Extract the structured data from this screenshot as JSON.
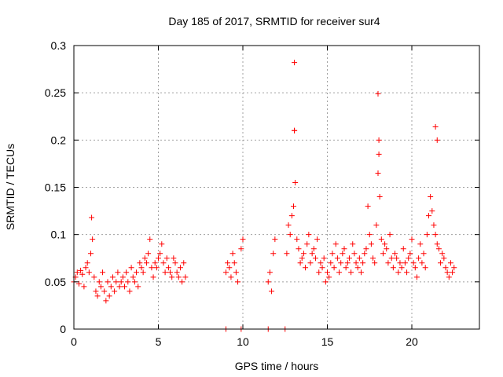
{
  "chart_data": {
    "type": "scatter",
    "title": "Day 185 of 2017, SRMTID for receiver sur4",
    "xlabel": "GPS time / hours",
    "ylabel": "SRMTID / TECUs",
    "xlim": [
      0,
      24
    ],
    "ylim": [
      0,
      0.3
    ],
    "xticks": [
      0,
      5,
      10,
      15,
      20
    ],
    "xtick_labels": [
      "0",
      "5",
      "10",
      "15",
      "20"
    ],
    "yticks": [
      0,
      0.05,
      0.1,
      0.15,
      0.2,
      0.25,
      0.3
    ],
    "ytick_labels": [
      "0",
      "0.05",
      "0.1",
      "0.15",
      "0.2",
      "0.25",
      "0.3"
    ],
    "grid": true,
    "marker": "plus",
    "color": "#ff0000",
    "series": [
      {
        "name": "SRMTID",
        "x": [
          0.0,
          0.1,
          0.2,
          0.3,
          0.4,
          0.5,
          0.6,
          0.7,
          0.8,
          0.9,
          1.0,
          1.05,
          1.1,
          1.2,
          1.3,
          1.4,
          1.5,
          1.6,
          1.7,
          1.8,
          1.9,
          2.0,
          2.1,
          2.2,
          2.3,
          2.4,
          2.5,
          2.6,
          2.7,
          2.8,
          2.9,
          3.0,
          3.1,
          3.2,
          3.3,
          3.4,
          3.5,
          3.6,
          3.7,
          3.8,
          3.9,
          4.0,
          4.1,
          4.2,
          4.3,
          4.4,
          4.5,
          4.6,
          4.7,
          4.8,
          4.9,
          5.0,
          5.1,
          5.2,
          5.3,
          5.4,
          5.5,
          5.6,
          5.7,
          5.8,
          5.9,
          6.0,
          6.1,
          6.2,
          6.3,
          6.4,
          6.5,
          6.6,
          9.0,
          9.1,
          9.2,
          9.3,
          9.4,
          9.5,
          9.6,
          9.7,
          9.9,
          10.0,
          9.0,
          9.9,
          11.5,
          12.5,
          11.5,
          11.6,
          11.7,
          11.8,
          11.9,
          12.6,
          12.7,
          12.8,
          12.9,
          13.0,
          13.05,
          13.1,
          13.2,
          13.3,
          13.4,
          13.5,
          13.6,
          13.7,
          13.8,
          13.9,
          14.0,
          14.1,
          14.2,
          14.3,
          14.4,
          14.5,
          14.6,
          14.7,
          14.8,
          14.9,
          15.0,
          15.1,
          15.2,
          15.3,
          15.4,
          15.5,
          15.6,
          15.7,
          15.8,
          15.9,
          16.0,
          16.1,
          16.2,
          16.3,
          16.4,
          16.5,
          16.6,
          16.7,
          16.8,
          16.9,
          17.0,
          17.1,
          17.2,
          17.3,
          17.4,
          17.5,
          17.6,
          17.7,
          17.8,
          17.9,
          18.0,
          18.05,
          18.1,
          18.2,
          18.3,
          18.4,
          18.5,
          18.6,
          18.7,
          18.8,
          18.9,
          19.0,
          19.1,
          19.2,
          19.3,
          19.4,
          19.5,
          19.6,
          19.7,
          19.8,
          19.9,
          20.0,
          20.1,
          20.2,
          20.3,
          20.4,
          20.5,
          20.6,
          20.7,
          20.8,
          20.9,
          21.0,
          21.1,
          21.2,
          21.3,
          21.4,
          21.5,
          21.6,
          21.7,
          21.8,
          21.9,
          22.0,
          22.1,
          22.2,
          22.3,
          22.4,
          22.5,
          13.05,
          13.05,
          18.0,
          18.05,
          21.4,
          21.5
        ],
        "y": [
          0.05,
          0.055,
          0.06,
          0.048,
          0.062,
          0.058,
          0.045,
          0.065,
          0.07,
          0.06,
          0.08,
          0.118,
          0.095,
          0.055,
          0.04,
          0.035,
          0.05,
          0.045,
          0.06,
          0.04,
          0.03,
          0.05,
          0.035,
          0.045,
          0.055,
          0.04,
          0.05,
          0.06,
          0.045,
          0.05,
          0.055,
          0.045,
          0.06,
          0.05,
          0.04,
          0.065,
          0.055,
          0.05,
          0.06,
          0.045,
          0.07,
          0.065,
          0.06,
          0.075,
          0.07,
          0.08,
          0.095,
          0.065,
          0.055,
          0.07,
          0.065,
          0.075,
          0.08,
          0.09,
          0.07,
          0.06,
          0.075,
          0.065,
          0.06,
          0.055,
          0.075,
          0.07,
          0.06,
          0.055,
          0.065,
          0.05,
          0.07,
          0.055,
          0.06,
          0.07,
          0.065,
          0.055,
          0.08,
          0.07,
          0.06,
          0.05,
          0.085,
          0.095,
          0.0,
          0.0,
          0.0,
          0.0,
          0.05,
          0.06,
          0.04,
          0.08,
          0.095,
          0.08,
          0.11,
          0.1,
          0.12,
          0.13,
          0.21,
          0.155,
          0.095,
          0.085,
          0.07,
          0.075,
          0.08,
          0.065,
          0.09,
          0.1,
          0.07,
          0.08,
          0.085,
          0.075,
          0.095,
          0.06,
          0.07,
          0.065,
          0.075,
          0.05,
          0.06,
          0.055,
          0.07,
          0.08,
          0.065,
          0.09,
          0.075,
          0.06,
          0.07,
          0.08,
          0.085,
          0.065,
          0.07,
          0.075,
          0.06,
          0.09,
          0.08,
          0.07,
          0.065,
          0.075,
          0.06,
          0.07,
          0.08,
          0.085,
          0.13,
          0.1,
          0.09,
          0.075,
          0.07,
          0.11,
          0.165,
          0.2,
          0.14,
          0.095,
          0.08,
          0.09,
          0.085,
          0.07,
          0.1,
          0.075,
          0.065,
          0.08,
          0.075,
          0.06,
          0.07,
          0.065,
          0.085,
          0.07,
          0.06,
          0.075,
          0.08,
          0.095,
          0.07,
          0.065,
          0.055,
          0.075,
          0.09,
          0.07,
          0.08,
          0.065,
          0.1,
          0.12,
          0.14,
          0.125,
          0.11,
          0.1,
          0.09,
          0.085,
          0.07,
          0.08,
          0.075,
          0.065,
          0.06,
          0.055,
          0.07,
          0.06,
          0.065,
          0.282,
          0.21,
          0.249,
          0.185,
          0.214,
          0.2
        ]
      }
    ]
  }
}
